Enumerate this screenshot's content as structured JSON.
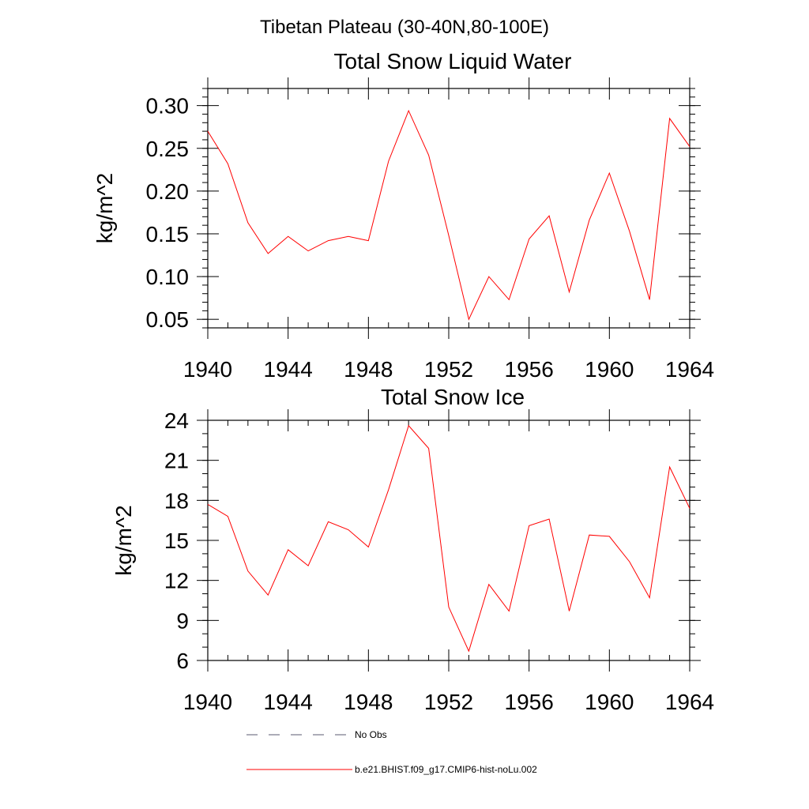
{
  "figure": {
    "title": "Tibetan Plateau (30-40N,80-100E)"
  },
  "legend": {
    "items": [
      {
        "label": "No Obs",
        "style": "dashed",
        "color": "#5a5a70"
      },
      {
        "label": "b.e21.BHIST.f09_g17.CMIP6-hist-noLu.002",
        "style": "solid",
        "color": "#ff0000"
      }
    ]
  },
  "chart_data": [
    {
      "type": "line",
      "title": "Total Snow Liquid Water",
      "xlabel": "",
      "ylabel": "kg/m^2",
      "xlim": [
        1940,
        1964
      ],
      "ylim": [
        0.04,
        0.32
      ],
      "xticks": [
        1940,
        1944,
        1948,
        1952,
        1956,
        1960,
        1964
      ],
      "yticks": [
        0.05,
        0.1,
        0.15,
        0.2,
        0.25,
        0.3
      ],
      "ytick_labels": [
        "0.05",
        "0.10",
        "0.15",
        "0.20",
        "0.25",
        "0.30"
      ],
      "grid": false,
      "x": [
        1940,
        1941,
        1942,
        1943,
        1944,
        1945,
        1946,
        1947,
        1948,
        1949,
        1950,
        1951,
        1952,
        1953,
        1954,
        1955,
        1956,
        1957,
        1958,
        1959,
        1960,
        1961,
        1962,
        1963,
        1964
      ],
      "series": [
        {
          "name": "b.e21.BHIST.f09_g17.CMIP6-hist-noLu.002",
          "color": "#ff0000",
          "values": [
            0.27,
            0.232,
            0.163,
            0.127,
            0.147,
            0.13,
            0.142,
            0.147,
            0.142,
            0.235,
            0.294,
            0.242,
            0.148,
            0.05,
            0.1,
            0.073,
            0.144,
            0.171,
            0.082,
            0.166,
            0.221,
            0.153,
            0.073,
            0.285,
            0.252
          ]
        }
      ]
    },
    {
      "type": "line",
      "title": "Total Snow Ice",
      "xlabel": "",
      "ylabel": "kg/m^2",
      "xlim": [
        1940,
        1964
      ],
      "ylim": [
        6,
        24
      ],
      "xticks": [
        1940,
        1944,
        1948,
        1952,
        1956,
        1960,
        1964
      ],
      "yticks": [
        6,
        9,
        12,
        15,
        18,
        21,
        24
      ],
      "ytick_labels": [
        "6",
        "9",
        "12",
        "15",
        "18",
        "21",
        "24"
      ],
      "grid": false,
      "x": [
        1940,
        1941,
        1942,
        1943,
        1944,
        1945,
        1946,
        1947,
        1948,
        1949,
        1950,
        1951,
        1952,
        1953,
        1954,
        1955,
        1956,
        1957,
        1958,
        1959,
        1960,
        1961,
        1962,
        1963,
        1964
      ],
      "series": [
        {
          "name": "b.e21.BHIST.f09_g17.CMIP6-hist-noLu.002",
          "color": "#ff0000",
          "values": [
            17.7,
            16.8,
            12.7,
            10.9,
            14.3,
            13.1,
            16.4,
            15.8,
            14.5,
            18.8,
            23.6,
            21.9,
            10.0,
            6.7,
            11.7,
            9.7,
            16.1,
            16.6,
            9.7,
            15.4,
            15.3,
            13.4,
            10.7,
            20.5,
            17.4
          ]
        }
      ]
    }
  ]
}
